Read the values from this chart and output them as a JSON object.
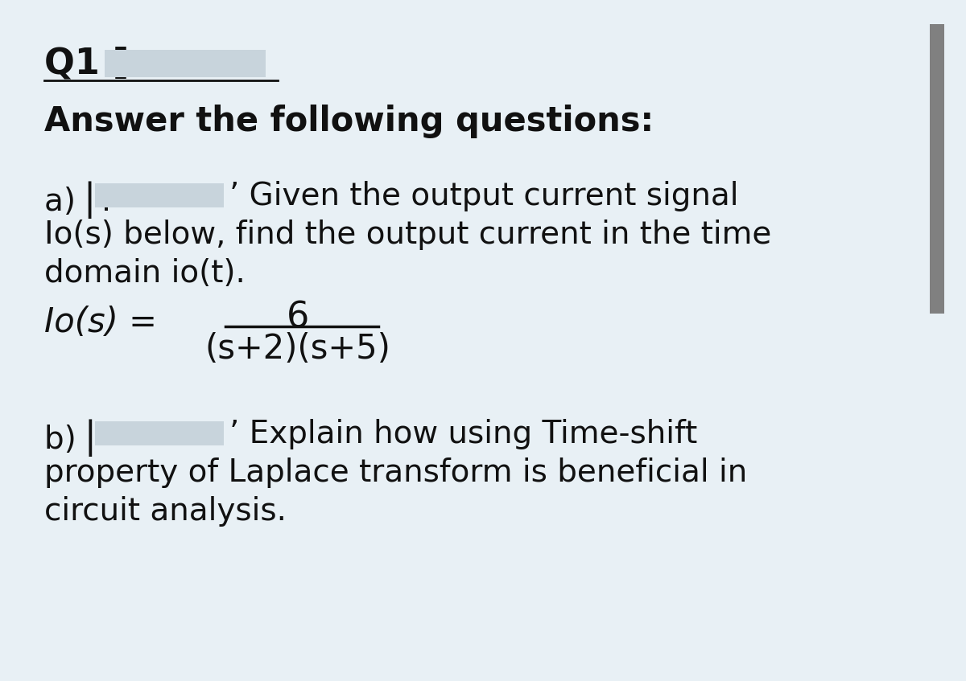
{
  "background_color": "#e8f0f5",
  "text_color": "#111111",
  "redact_color": "#c8d4dc",
  "right_bar_color": "#808080",
  "font_size_title": 32,
  "font_size_heading": 30,
  "font_size_body": 28,
  "font_size_formula": 30,
  "title_text": "Q1 [",
  "heading_text": "Answer the following questions:",
  "part_a_prefix": "a) ⎜.",
  "part_a_after_redact": "’ Given the output current signal",
  "part_a_line2": "Io(s) below, find the output current in the time",
  "part_a_line3": "domain io(t).",
  "formula_lhs": "Io(s) =",
  "formula_num": "6",
  "formula_den": "(s+2)(s+5)",
  "part_b_prefix": "b) ⎜−",
  "part_b_after_redact": "’ Explain how using Time-shift",
  "part_b_line2": "property of Laplace transform is beneficial in",
  "part_b_line3": "circuit analysis."
}
